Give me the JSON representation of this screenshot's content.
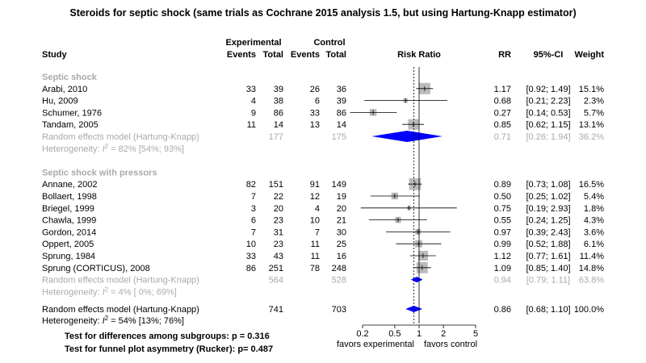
{
  "title": "Steroids for septic shock (same trials as Cochrane 2015 analysis 1.5, but using Hartung-Knapp estimator)",
  "header": {
    "study": "Study",
    "experimental": "Experimental",
    "control": "Control",
    "events": "Events",
    "total": "Total",
    "risk_ratio": "Risk Ratio",
    "rr": "RR",
    "ci": "95%-CI",
    "weight": "Weight"
  },
  "colors": {
    "text": "#000000",
    "muted": "#aaaaaa",
    "box": "#bbbbbb",
    "diamond": "#0000ff"
  },
  "chart_data": {
    "type": "forest",
    "scale": "log",
    "x_ticks": [
      0.2,
      0.5,
      1,
      2,
      5
    ],
    "x_tick_labels": [
      "0.2",
      "0.5",
      "1",
      "2",
      "5"
    ],
    "favors_left": "favors experimental",
    "favors_right": "favors control",
    "overall_line": 0.86,
    "subgroups": [
      {
        "label": "Septic shock",
        "studies": [
          {
            "name": "Arabi, 2010",
            "e_ev": "33",
            "e_tot": "39",
            "c_ev": "26",
            "c_tot": "36",
            "rr": 1.17,
            "lo": 0.92,
            "hi": 1.49,
            "rr_text": "1.17",
            "ci_text": "[0.92; 1.49]",
            "weight_text": "15.1%",
            "weight": 15.1
          },
          {
            "name": "Hu, 2009",
            "e_ev": "4",
            "e_tot": "38",
            "c_ev": "6",
            "c_tot": "39",
            "rr": 0.68,
            "lo": 0.21,
            "hi": 2.23,
            "rr_text": "0.68",
            "ci_text": "[0.21; 2.23]",
            "weight_text": "2.3%",
            "weight": 2.3
          },
          {
            "name": "Schumer, 1976",
            "e_ev": "9",
            "e_tot": "86",
            "c_ev": "33",
            "c_tot": "86",
            "rr": 0.27,
            "lo": 0.14,
            "hi": 0.53,
            "rr_text": "0.27",
            "ci_text": "[0.14; 0.53]",
            "weight_text": "5.7%",
            "weight": 5.7
          },
          {
            "name": "Tandam, 2005",
            "e_ev": "11",
            "e_tot": "14",
            "c_ev": "13",
            "c_tot": "14",
            "rr": 0.85,
            "lo": 0.62,
            "hi": 1.15,
            "rr_text": "0.85",
            "ci_text": "[0.62; 1.15]",
            "weight_text": "13.1%",
            "weight": 13.1
          }
        ],
        "pooled": {
          "label": "Random effects model  (Hartung-Knapp)",
          "e_tot": "177",
          "c_tot": "175",
          "rr": 0.71,
          "lo": 0.26,
          "hi": 1.94,
          "rr_text": "0.71",
          "ci_text": "[0.26; 1.94]",
          "weight_text": "36.2%"
        },
        "heterogeneity": {
          "prefix": "Heterogeneity: ",
          "i2": "I",
          "sup": "2",
          "rest": " = 82% [54%; 93%]"
        }
      },
      {
        "label": "Septic shock with pressors",
        "studies": [
          {
            "name": "Annane, 2002",
            "e_ev": "82",
            "e_tot": "151",
            "c_ev": "91",
            "c_tot": "149",
            "rr": 0.89,
            "lo": 0.73,
            "hi": 1.08,
            "rr_text": "0.89",
            "ci_text": "[0.73; 1.08]",
            "weight_text": "16.5%",
            "weight": 16.5
          },
          {
            "name": "Bollaert, 1998",
            "e_ev": "7",
            "e_tot": "22",
            "c_ev": "12",
            "c_tot": "19",
            "rr": 0.5,
            "lo": 0.25,
            "hi": 1.02,
            "rr_text": "0.50",
            "ci_text": "[0.25; 1.02]",
            "weight_text": "5.4%",
            "weight": 5.4
          },
          {
            "name": "Briegel, 1999",
            "e_ev": "3",
            "e_tot": "20",
            "c_ev": "4",
            "c_tot": "20",
            "rr": 0.75,
            "lo": 0.19,
            "hi": 2.93,
            "rr_text": "0.75",
            "ci_text": "[0.19; 2.93]",
            "weight_text": "1.8%",
            "weight": 1.8
          },
          {
            "name": "Chawla, 1999",
            "e_ev": "6",
            "e_tot": "23",
            "c_ev": "10",
            "c_tot": "21",
            "rr": 0.55,
            "lo": 0.24,
            "hi": 1.25,
            "rr_text": "0.55",
            "ci_text": "[0.24; 1.25]",
            "weight_text": "4.3%",
            "weight": 4.3
          },
          {
            "name": "Gordon, 2014",
            "e_ev": "7",
            "e_tot": "31",
            "c_ev": "7",
            "c_tot": "30",
            "rr": 0.97,
            "lo": 0.39,
            "hi": 2.43,
            "rr_text": "0.97",
            "ci_text": "[0.39; 2.43]",
            "weight_text": "3.6%",
            "weight": 3.6
          },
          {
            "name": "Oppert, 2005",
            "e_ev": "10",
            "e_tot": "23",
            "c_ev": "11",
            "c_tot": "25",
            "rr": 0.99,
            "lo": 0.52,
            "hi": 1.88,
            "rr_text": "0.99",
            "ci_text": "[0.52; 1.88]",
            "weight_text": "6.1%",
            "weight": 6.1
          },
          {
            "name": "Sprung, 1984",
            "e_ev": "33",
            "e_tot": "43",
            "c_ev": "11",
            "c_tot": "16",
            "rr": 1.12,
            "lo": 0.77,
            "hi": 1.61,
            "rr_text": "1.12",
            "ci_text": "[0.77; 1.61]",
            "weight_text": "11.4%",
            "weight": 11.4
          },
          {
            "name": "Sprung (CORTICUS), 2008",
            "e_ev": "86",
            "e_tot": "251",
            "c_ev": "78",
            "c_tot": "248",
            "rr": 1.09,
            "lo": 0.85,
            "hi": 1.4,
            "rr_text": "1.09",
            "ci_text": "[0.85; 1.40]",
            "weight_text": "14.8%",
            "weight": 14.8
          }
        ],
        "pooled": {
          "label": "Random effects model  (Hartung-Knapp)",
          "e_tot": "564",
          "c_tot": "528",
          "rr": 0.94,
          "lo": 0.79,
          "hi": 1.11,
          "rr_text": "0.94",
          "ci_text": "[0.79; 1.11]",
          "weight_text": "63.8%"
        },
        "heterogeneity": {
          "prefix": "Heterogeneity: ",
          "i2": "I",
          "sup": "2",
          "rest": " = 4% [ 0%; 69%]"
        }
      }
    ],
    "overall": {
      "label": "Random effects model  (Hartung-Knapp)",
      "e_tot": "741",
      "c_tot": "703",
      "rr": 0.86,
      "lo": 0.68,
      "hi": 1.1,
      "rr_text": "0.86",
      "ci_text": "[0.68; 1.10]",
      "weight_text": "100.0%"
    },
    "overall_heterogeneity": {
      "prefix": "Heterogeneity: ",
      "i2": "I",
      "sup": "2",
      "rest": " = 54% [13%; 76%]"
    },
    "tests": [
      "Test for differences among subgroups: p = 0.316",
      "Test for funnel plot asymmetry (Rucker): p= 0.487"
    ]
  }
}
